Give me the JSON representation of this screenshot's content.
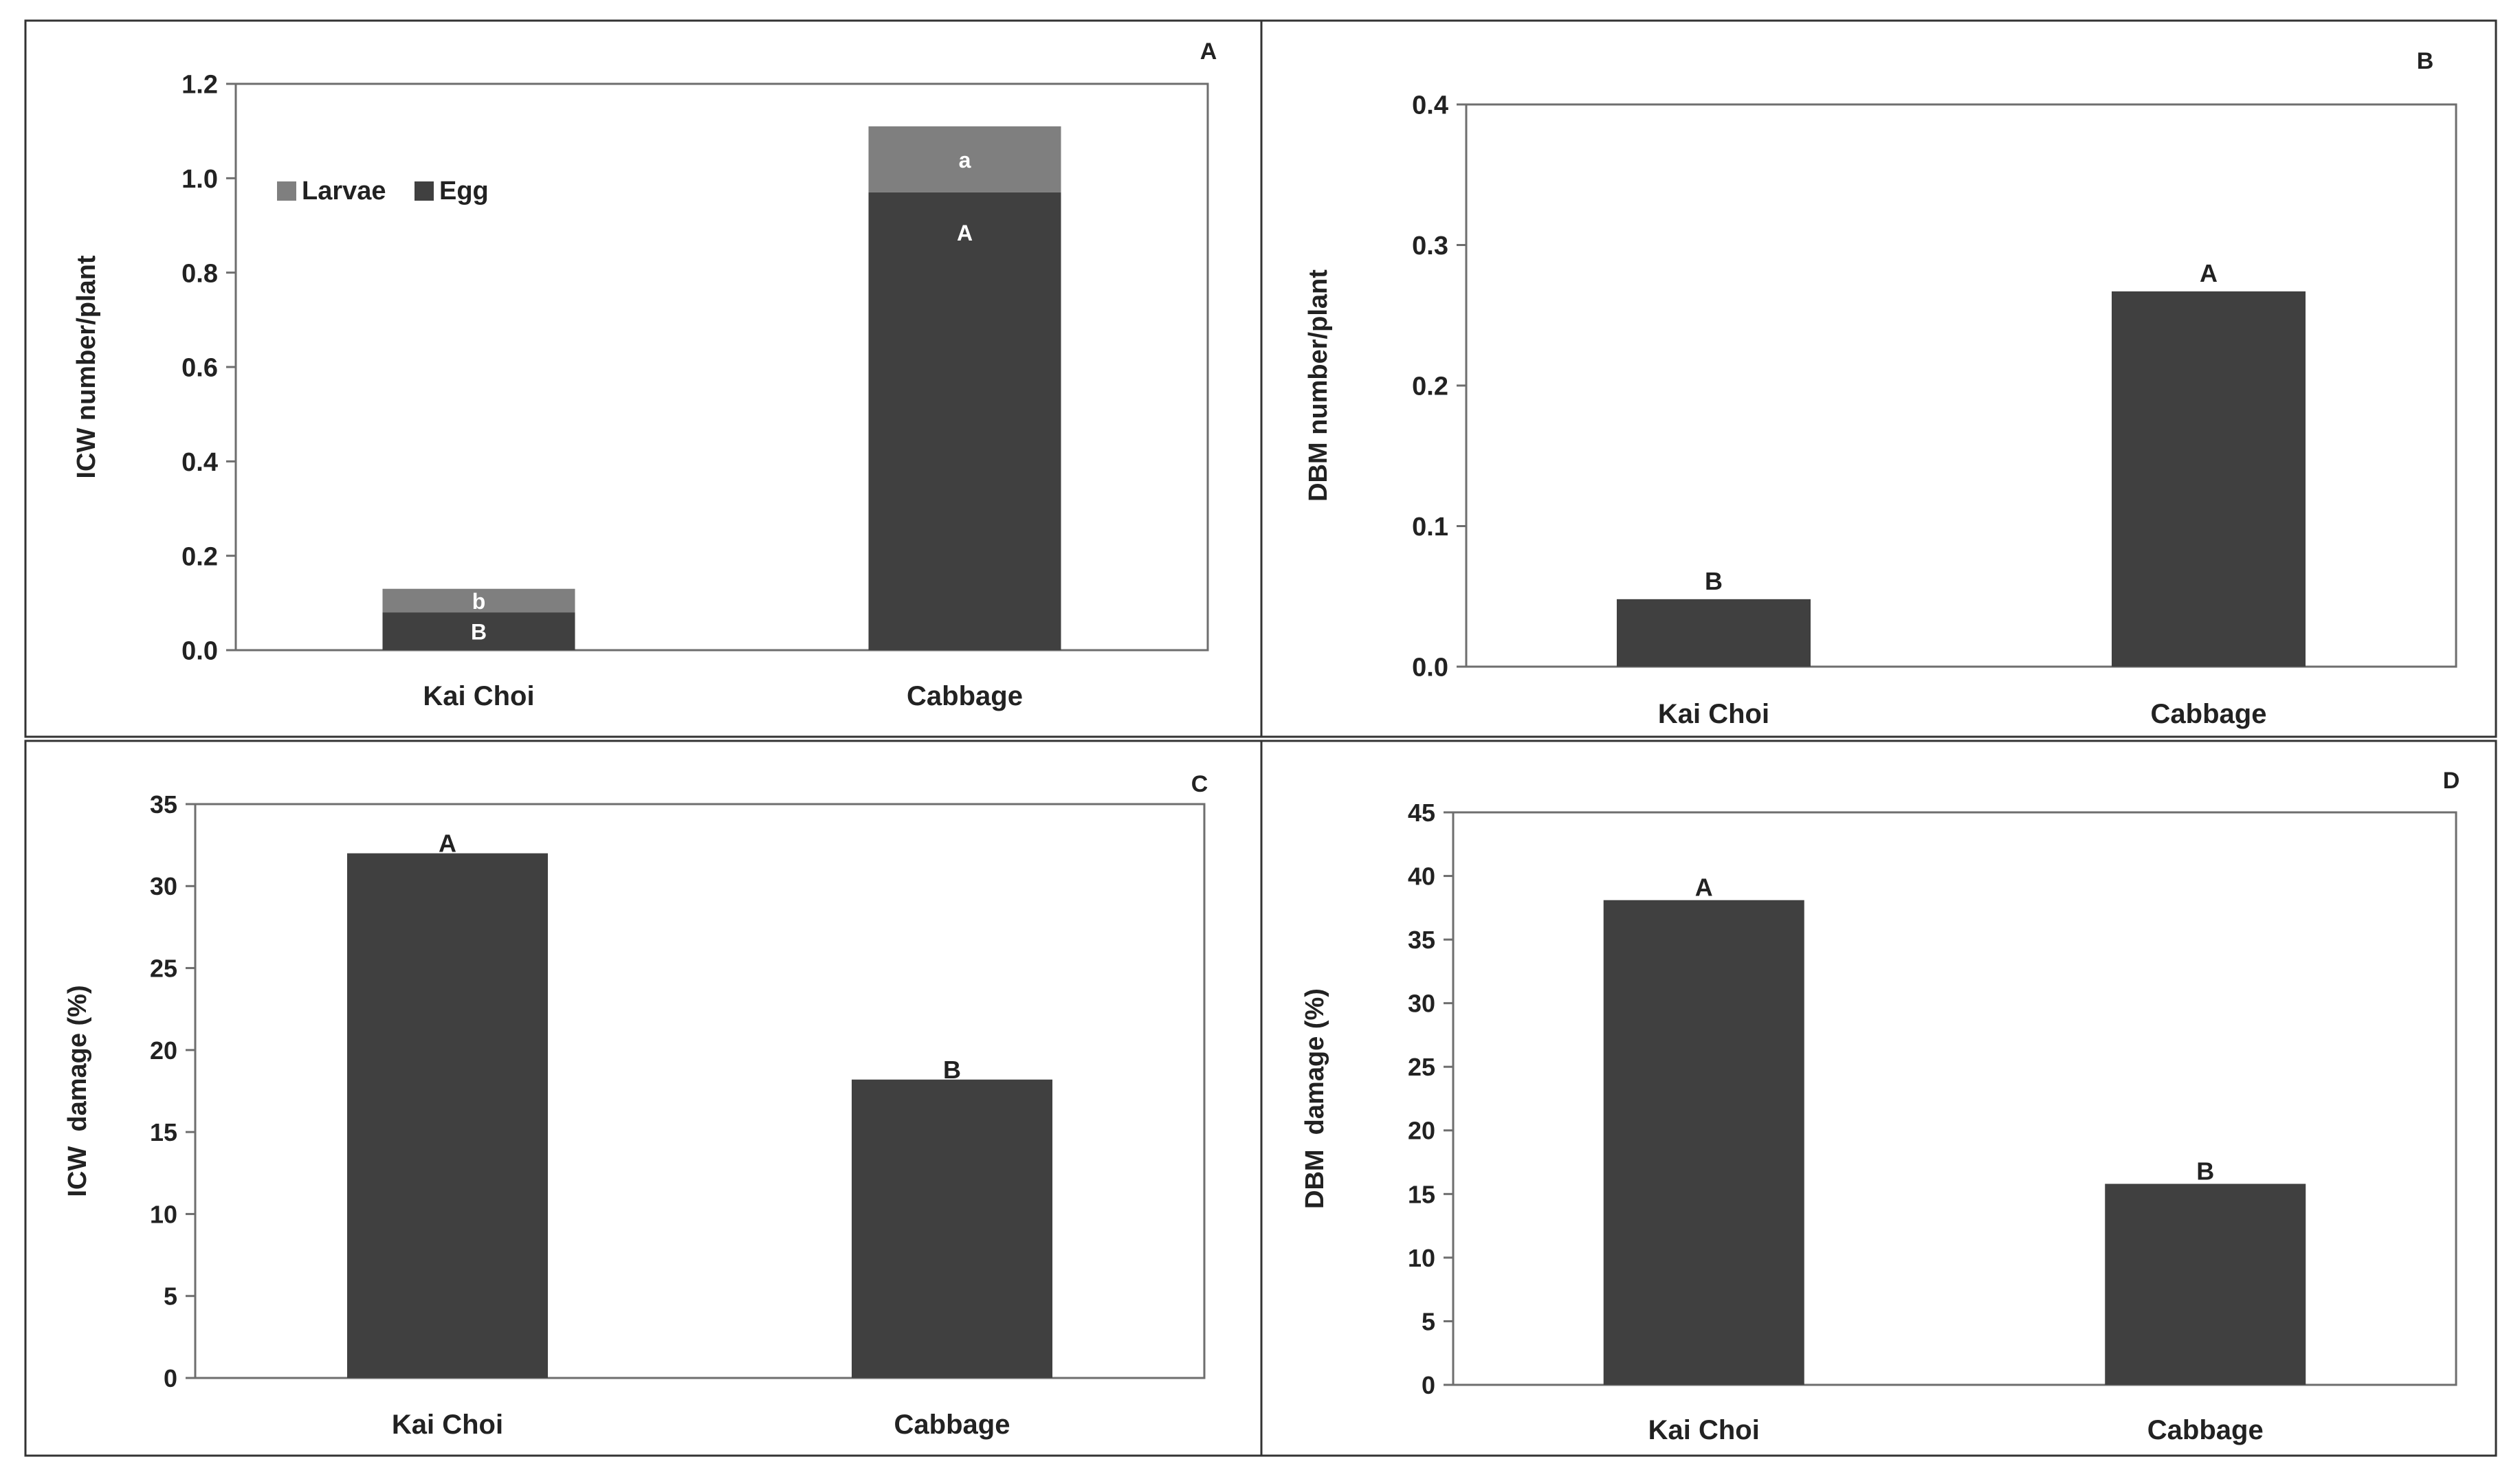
{
  "colors": {
    "bar": "#404040",
    "larvae": "#7f7f7f",
    "axis": "#6e6e6e",
    "text": "#222222",
    "inner_label": "#ffffff"
  },
  "chart_data": [
    {
      "panel": "A",
      "type": "bar",
      "stacked": true,
      "title": "",
      "ylabel": "ICW number/plant",
      "xlabel": "",
      "ylim": [
        0,
        1.2
      ],
      "ytick_step": 0.2,
      "ytick_decimals": 1,
      "categories": [
        "Kai Choi",
        "Cabbage"
      ],
      "legend": {
        "position": "top-left",
        "entries": [
          "Larvae",
          "Egg"
        ]
      },
      "series": [
        {
          "name": "Egg",
          "values": [
            0.08,
            0.97
          ],
          "labels": [
            "B",
            "A"
          ],
          "color": "#404040"
        },
        {
          "name": "Larvae",
          "values": [
            0.05,
            0.14
          ],
          "labels": [
            "b",
            "a"
          ],
          "color": "#7f7f7f"
        }
      ]
    },
    {
      "panel": "B",
      "type": "bar",
      "title": "",
      "ylabel": "DBM number/plant",
      "xlabel": "",
      "ylim": [
        0,
        0.4
      ],
      "ytick_step": 0.1,
      "ytick_decimals": 1,
      "categories": [
        "Kai Choi",
        "Cabbage"
      ],
      "values": [
        0.048,
        0.267
      ],
      "labels": [
        "B",
        "A"
      ]
    },
    {
      "panel": "C",
      "type": "bar",
      "title": "",
      "ylabel": "ICW  damage (%)",
      "xlabel": "",
      "ylim": [
        0,
        35
      ],
      "ytick_step": 5,
      "ytick_decimals": 0,
      "categories": [
        "Kai Choi",
        "Cabbage"
      ],
      "values": [
        32,
        18.2
      ],
      "labels": [
        "A",
        "B"
      ]
    },
    {
      "panel": "D",
      "type": "bar",
      "title": "",
      "ylabel": "DBM  damage (%)",
      "xlabel": "",
      "ylim": [
        0,
        45
      ],
      "ytick_step": 5,
      "ytick_decimals": 0,
      "categories": [
        "Kai Choi",
        "Cabbage"
      ],
      "values": [
        38.1,
        15.8
      ],
      "labels": [
        "A",
        "B"
      ]
    }
  ]
}
